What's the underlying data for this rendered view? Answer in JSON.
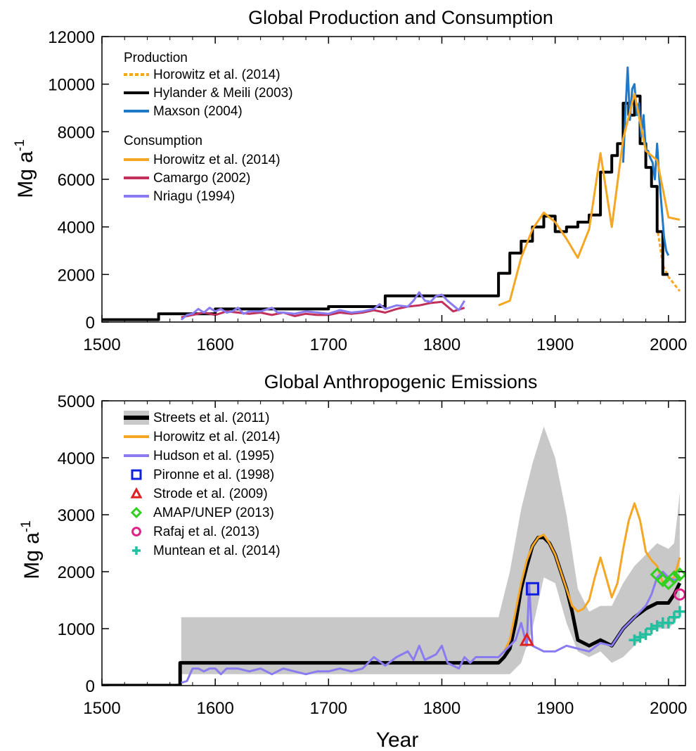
{
  "chart_data": [
    {
      "type": "line",
      "title": "Global Production and Consumption",
      "xlabel": "",
      "ylabel": "Mg a",
      "ylabel_superscript": "-1",
      "xlim": [
        1500,
        2015
      ],
      "ylim": [
        0,
        12000
      ],
      "xticks": [
        1500,
        1600,
        1700,
        1800,
        1900,
        2000
      ],
      "yticks": [
        0,
        2000,
        4000,
        6000,
        8000,
        10000,
        12000
      ],
      "xtick_labels": [
        "1500",
        "1600",
        "1700",
        "1800",
        "1900",
        "2000"
      ],
      "ytick_labels": [
        "0",
        "2000",
        "4000",
        "6000",
        "8000",
        "10000",
        "12000"
      ],
      "grid": false,
      "legend_placement": "top-left",
      "legend_groups": [
        {
          "heading": "Production",
          "entries": [
            "Horowitz et al. (2014)",
            "Hylander & Meili (2003)",
            "Maxson (2004)"
          ]
        },
        {
          "heading": "Consumption",
          "entries": [
            "Horowitz et al. (2014)",
            "Camargo (2002)",
            "Nriagu (1994)"
          ]
        }
      ],
      "series": [
        {
          "name": "Horowitz et al. (2014)",
          "group": "Production",
          "style": "dashed",
          "color": "#f5a623",
          "x": [
            1990,
            1995,
            2000,
            2005,
            2010
          ],
          "y": [
            4000,
            2400,
            1900,
            1600,
            1300
          ]
        },
        {
          "name": "Hylander & Meili (2003)",
          "group": "Production",
          "style": "step",
          "color": "#000000",
          "x": [
            1500,
            1550,
            1550,
            1600,
            1600,
            1700,
            1700,
            1750,
            1750,
            1850,
            1850,
            1860,
            1860,
            1870,
            1870,
            1880,
            1880,
            1890,
            1890,
            1900,
            1900,
            1910,
            1910,
            1920,
            1920,
            1930,
            1930,
            1940,
            1940,
            1950,
            1950,
            1955,
            1955,
            1960,
            1960,
            1965,
            1965,
            1970,
            1970,
            1975,
            1975,
            1980,
            1980,
            1985,
            1985,
            1990,
            1990,
            1995,
            1995,
            2000
          ],
          "y": [
            100,
            100,
            350,
            350,
            550,
            550,
            650,
            650,
            1100,
            1100,
            2050,
            2050,
            2900,
            2900,
            3400,
            3400,
            4000,
            4000,
            4450,
            4450,
            3800,
            3800,
            4000,
            4000,
            4200,
            4200,
            4500,
            4500,
            6300,
            6300,
            7000,
            7000,
            7500,
            7500,
            9200,
            9200,
            8700,
            8700,
            9500,
            9500,
            7500,
            7500,
            6500,
            6500,
            5700,
            5700,
            3800,
            3800,
            2000,
            2000
          ]
        },
        {
          "name": "Maxson (2004)",
          "group": "Production",
          "style": "solid",
          "color": "#1f78c8",
          "x": [
            1960,
            1962,
            1964,
            1966,
            1968,
            1970,
            1972,
            1974,
            1976,
            1978,
            1980,
            1982,
            1984,
            1986,
            1988,
            1990,
            1992,
            1994,
            1996,
            1998,
            2000
          ],
          "y": [
            6700,
            8800,
            10700,
            8500,
            9800,
            10000,
            8700,
            9200,
            7800,
            8700,
            7200,
            7200,
            6900,
            6700,
            6000,
            7500,
            6000,
            4800,
            3600,
            3000,
            2800
          ]
        },
        {
          "name": "Horowitz et al. (2014)",
          "group": "Consumption",
          "style": "solid",
          "color": "#f5a623",
          "x": [
            1850,
            1860,
            1870,
            1880,
            1890,
            1900,
            1910,
            1920,
            1930,
            1940,
            1950,
            1960,
            1970,
            1980,
            1990,
            2000,
            2010
          ],
          "y": [
            700,
            900,
            2700,
            3900,
            4600,
            4200,
            3500,
            2700,
            3900,
            7100,
            4000,
            7700,
            9600,
            7200,
            6800,
            4400,
            4300
          ]
        },
        {
          "name": "Camargo (2002)",
          "group": "Consumption",
          "style": "solid",
          "color": "#c0305a",
          "x": [
            1570,
            1580,
            1590,
            1600,
            1610,
            1620,
            1630,
            1640,
            1650,
            1660,
            1670,
            1680,
            1690,
            1700,
            1710,
            1720,
            1730,
            1740,
            1750,
            1760,
            1770,
            1780,
            1790,
            1800,
            1810,
            1820
          ],
          "y": [
            200,
            300,
            400,
            300,
            450,
            400,
            350,
            400,
            300,
            400,
            250,
            350,
            300,
            300,
            400,
            350,
            400,
            500,
            400,
            550,
            650,
            700,
            800,
            850,
            450,
            600
          ]
        },
        {
          "name": "Nriagu (1994)",
          "group": "Consumption",
          "style": "solid",
          "color": "#8a7cf0",
          "x": [
            1570,
            1575,
            1580,
            1585,
            1590,
            1595,
            1600,
            1605,
            1610,
            1615,
            1620,
            1625,
            1630,
            1640,
            1650,
            1655,
            1660,
            1670,
            1680,
            1690,
            1700,
            1710,
            1720,
            1730,
            1740,
            1745,
            1750,
            1760,
            1770,
            1775,
            1780,
            1785,
            1790,
            1795,
            1800,
            1805,
            1810,
            1815,
            1820
          ],
          "y": [
            100,
            300,
            350,
            550,
            400,
            600,
            450,
            550,
            400,
            450,
            600,
            350,
            450,
            450,
            600,
            400,
            400,
            350,
            450,
            400,
            350,
            500,
            400,
            450,
            550,
            750,
            550,
            700,
            650,
            900,
            1250,
            900,
            850,
            1100,
            1150,
            900,
            700,
            500,
            900
          ]
        }
      ]
    },
    {
      "type": "line",
      "title": "Global Anthropogenic Emissions",
      "xlabel": "Year",
      "ylabel": "Mg a",
      "ylabel_superscript": "-1",
      "xlim": [
        1500,
        2015
      ],
      "ylim": [
        0,
        5000
      ],
      "xticks": [
        1500,
        1600,
        1700,
        1800,
        1900,
        2000
      ],
      "yticks": [
        0,
        1000,
        2000,
        3000,
        4000,
        5000
      ],
      "xtick_labels": [
        "1500",
        "1600",
        "1700",
        "1800",
        "1900",
        "2000"
      ],
      "ytick_labels": [
        "0",
        "1000",
        "2000",
        "3000",
        "4000",
        "5000"
      ],
      "grid": false,
      "legend_placement": "top-left",
      "legend_entries": [
        "Streets et al. (2011)",
        "Horowitz et al. (2014)",
        "Hudson et al. (1995)",
        "Pironne et al. (1998)",
        "Strode et al. (2009)",
        "AMAP/UNEP (2013)",
        "Rafaj et al. (2013)",
        "Muntean et al. (2014)"
      ],
      "uncertainty_band": {
        "name": "Streets et al. (2011)",
        "color": "#c8c8c8",
        "x": [
          1570,
          1850,
          1860,
          1870,
          1880,
          1890,
          1900,
          1910,
          1920,
          1930,
          1940,
          1950,
          1960,
          1970,
          1980,
          1990,
          2000,
          2005,
          2008,
          2010
        ],
        "upper": [
          1200,
          1200,
          2000,
          3100,
          3900,
          4550,
          4000,
          3000,
          1700,
          1300,
          1400,
          1400,
          1800,
          2100,
          2300,
          2500,
          2400,
          2500,
          3000,
          3400
        ],
        "lower": [
          200,
          200,
          200,
          400,
          1000,
          1900,
          1800,
          1100,
          600,
          500,
          600,
          400,
          500,
          700,
          900,
          1000,
          1000,
          1100,
          1200,
          1300
        ]
      },
      "series": [
        {
          "name": "Streets et al. (2011)",
          "style": "thick",
          "color": "#000000",
          "x": [
            1500,
            1569,
            1569,
            1850,
            1855,
            1860,
            1865,
            1870,
            1875,
            1880,
            1885,
            1890,
            1895,
            1900,
            1905,
            1910,
            1915,
            1920,
            1930,
            1940,
            1950,
            1960,
            1970,
            1980,
            1990,
            2000,
            2005,
            2010
          ],
          "y": [
            0,
            0,
            400,
            400,
            500,
            650,
            1100,
            1700,
            2100,
            2450,
            2600,
            2600,
            2500,
            2300,
            2000,
            1700,
            1300,
            800,
            700,
            800,
            700,
            1000,
            1200,
            1350,
            1450,
            1450,
            1600,
            1800
          ]
        },
        {
          "name": "Horowitz et al. (2014)",
          "style": "solid",
          "color": "#f5a623",
          "x": [
            1850,
            1855,
            1860,
            1865,
            1870,
            1875,
            1880,
            1885,
            1890,
            1895,
            1900,
            1905,
            1910,
            1915,
            1920,
            1925,
            1930,
            1935,
            1940,
            1945,
            1950,
            1955,
            1960,
            1965,
            1970,
            1975,
            1980,
            1985,
            1990,
            1995,
            2000,
            2005,
            2010
          ],
          "y": [
            500,
            600,
            800,
            1300,
            1800,
            2200,
            2450,
            2600,
            2650,
            2500,
            2300,
            2000,
            1700,
            1400,
            1300,
            1350,
            1500,
            1900,
            2250,
            1900,
            1550,
            1800,
            2400,
            2900,
            3200,
            2900,
            2350,
            2200,
            2100,
            1800,
            1850,
            1900,
            2250
          ]
        },
        {
          "name": "Hudson et al. (1995)",
          "style": "solid",
          "color": "#8a7cf0",
          "x": [
            1570,
            1575,
            1580,
            1585,
            1590,
            1595,
            1600,
            1605,
            1610,
            1620,
            1630,
            1640,
            1650,
            1660,
            1670,
            1680,
            1690,
            1700,
            1710,
            1720,
            1730,
            1740,
            1750,
            1760,
            1770,
            1775,
            1780,
            1785,
            1790,
            1795,
            1800,
            1805,
            1810,
            1815,
            1820,
            1825,
            1830,
            1840,
            1850,
            1855,
            1860,
            1865,
            1870,
            1875,
            1877,
            1880,
            1885,
            1890,
            1900,
            1910,
            1920,
            1930,
            1940,
            1950,
            1960,
            1970,
            1980,
            1985,
            1990,
            1995,
            2000,
            2005,
            2010
          ],
          "y": [
            50,
            80,
            300,
            300,
            250,
            300,
            300,
            200,
            300,
            300,
            250,
            300,
            200,
            300,
            250,
            200,
            250,
            250,
            300,
            250,
            300,
            500,
            350,
            500,
            600,
            450,
            700,
            450,
            500,
            550,
            700,
            400,
            350,
            300,
            500,
            400,
            500,
            500,
            500,
            600,
            700,
            800,
            1100,
            700,
            1800,
            700,
            650,
            600,
            600,
            700,
            650,
            600,
            750,
            700,
            1000,
            1200,
            1400,
            1600,
            1900,
            2000,
            1900,
            1850,
            1900
          ]
        },
        {
          "name": "Pironne et al. (1998)",
          "style": "marker",
          "marker": "square",
          "color": "#1020e0",
          "x": [
            1880
          ],
          "y": [
            1700
          ]
        },
        {
          "name": "Strode et al. (2009)",
          "style": "marker",
          "marker": "triangle",
          "color": "#e02020",
          "x": [
            1875
          ],
          "y": [
            800
          ]
        },
        {
          "name": "AMAP/UNEP (2013)",
          "style": "marker",
          "marker": "diamond",
          "color": "#30d020",
          "x": [
            1990,
            1995,
            2000,
            2005,
            2010
          ],
          "y": [
            1950,
            1850,
            1800,
            1900,
            1950
          ]
        },
        {
          "name": "Rafaj et al. (2013)",
          "style": "marker",
          "marker": "circle",
          "color": "#e0208a",
          "x": [
            2010
          ],
          "y": [
            1600
          ]
        },
        {
          "name": "Muntean et al. (2014)",
          "style": "marker",
          "marker": "plus",
          "color": "#20c0a0",
          "x": [
            1970,
            1975,
            1980,
            1985,
            1990,
            1995,
            2000,
            2005,
            2010
          ],
          "y": [
            800,
            850,
            900,
            1000,
            1050,
            1100,
            1100,
            1200,
            1300
          ]
        }
      ]
    }
  ]
}
